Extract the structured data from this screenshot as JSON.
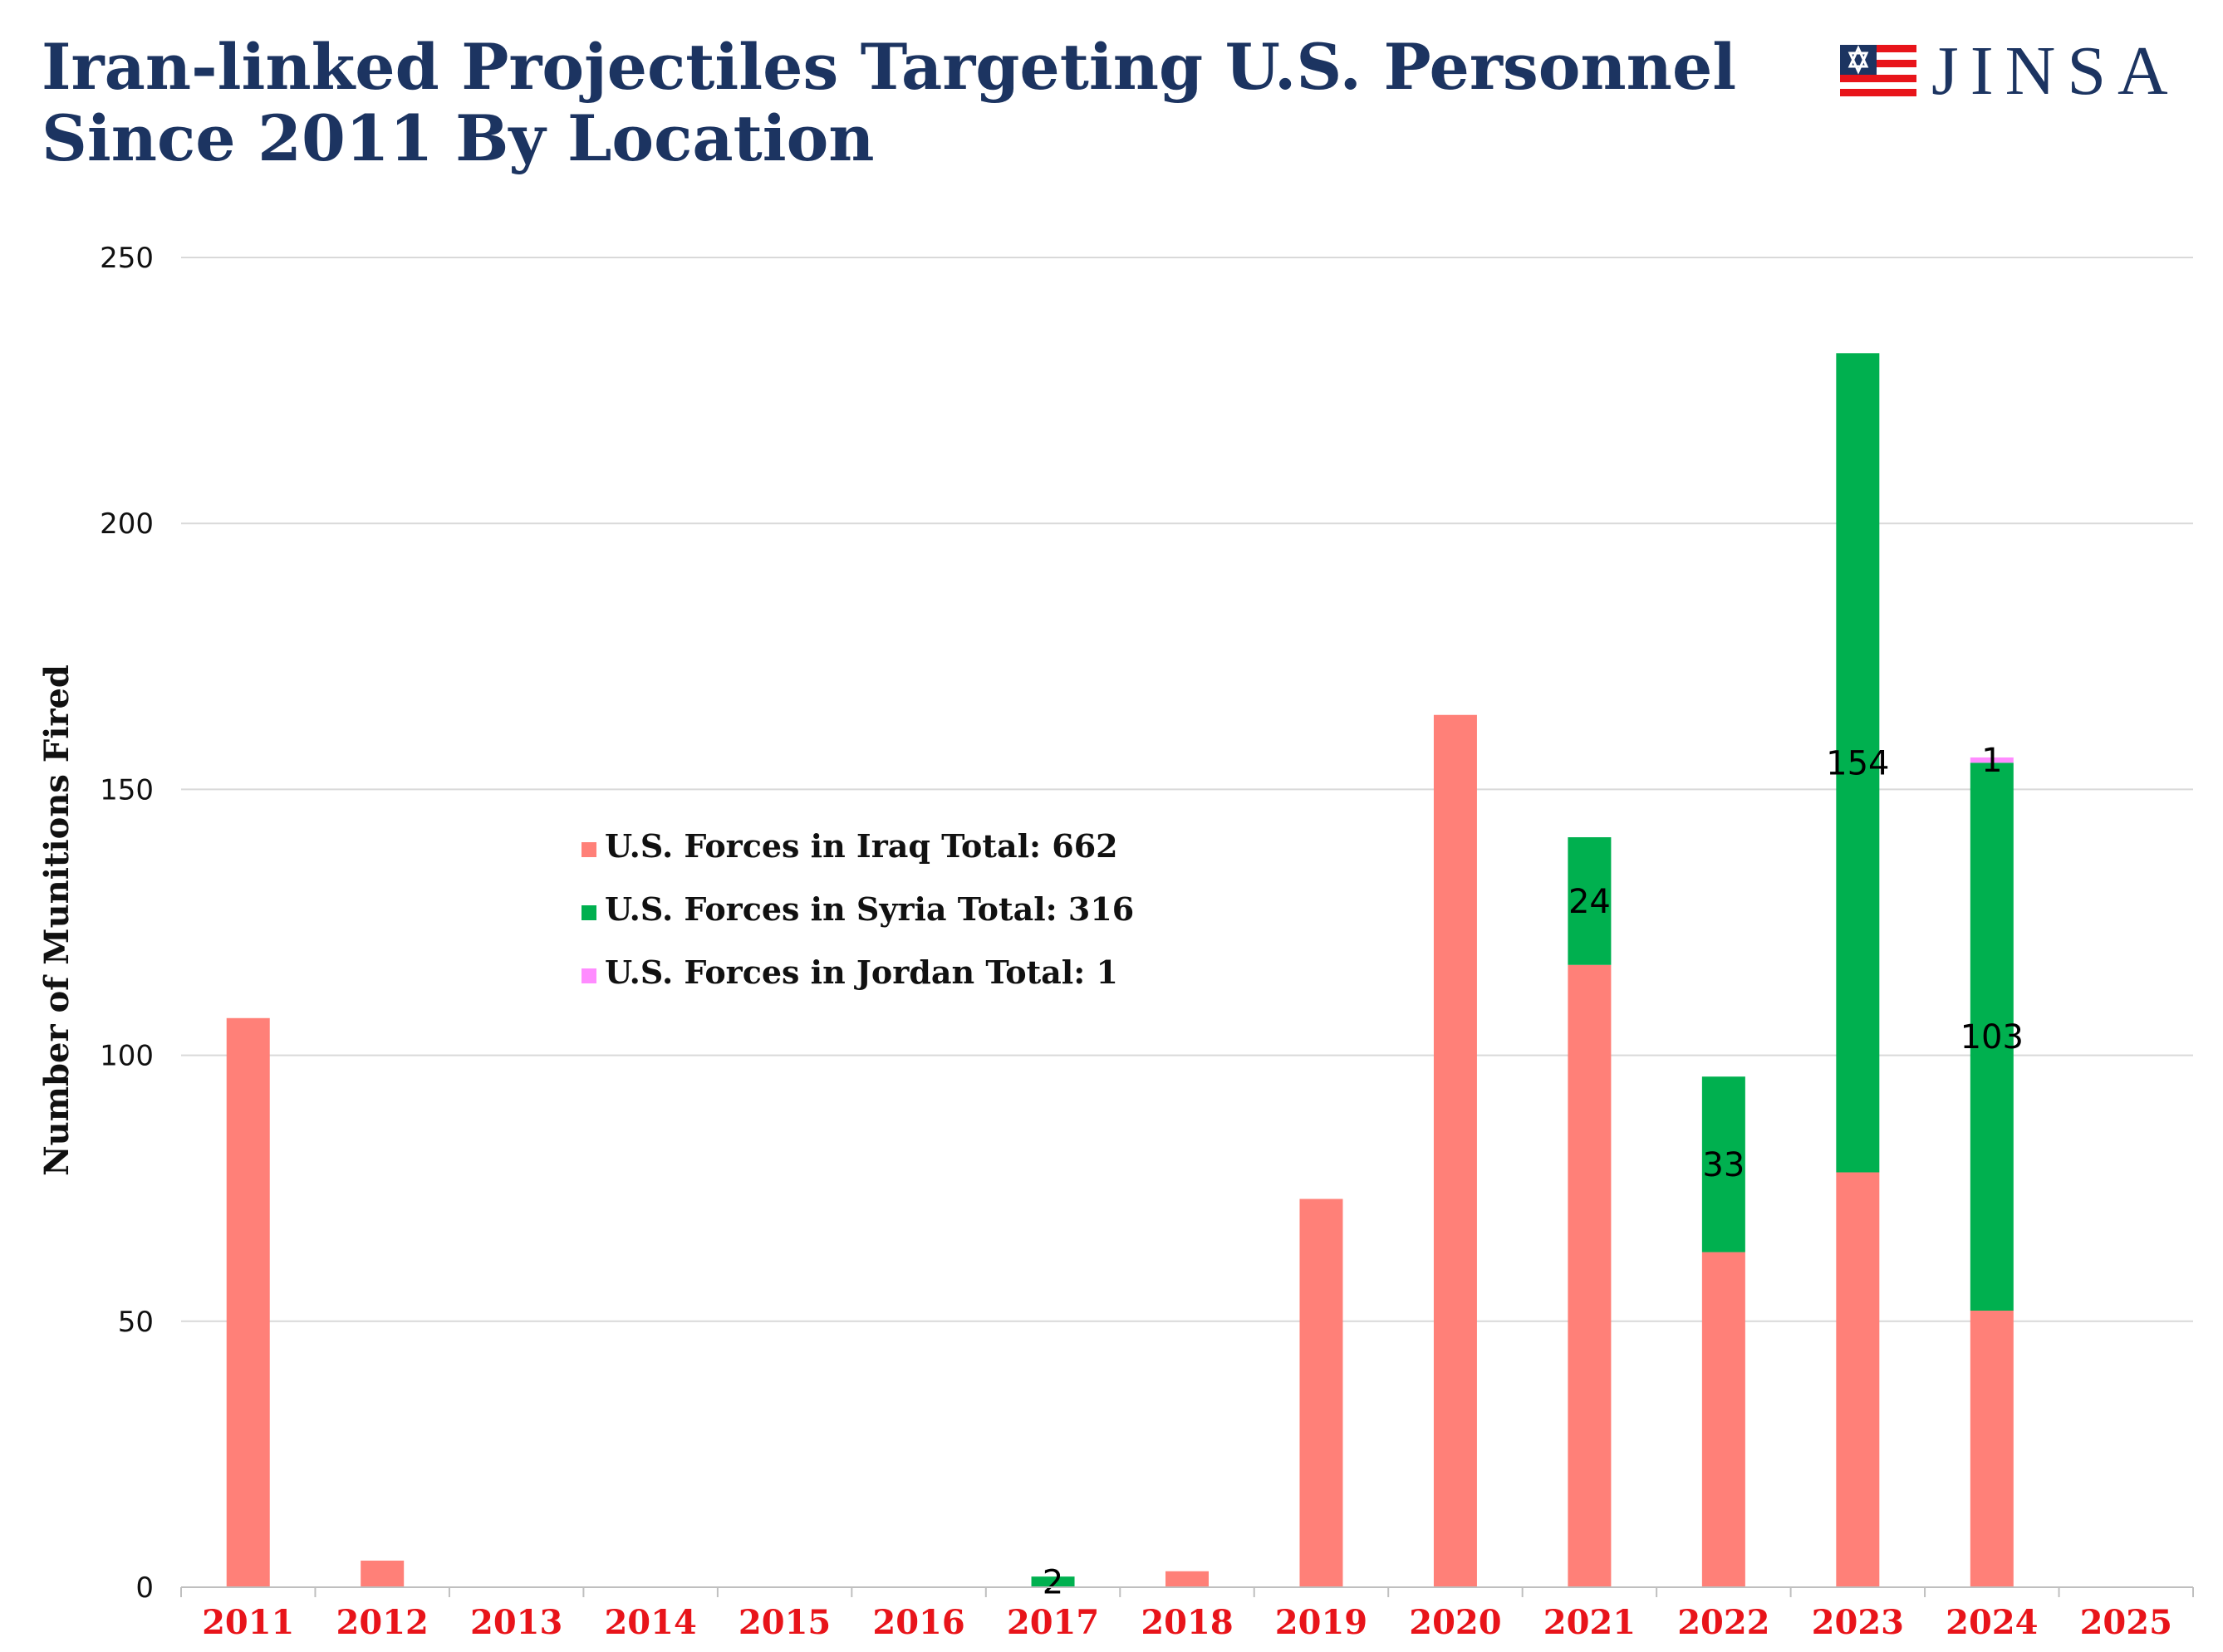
{
  "header": {
    "title_line1": "Iran-linked Projectiles Targeting U.S. Personnel",
    "title_line2": "Since 2011 By Location",
    "logo_text": "JINSA"
  },
  "chart_data": {
    "type": "bar",
    "stacked": true,
    "title": "Iran-linked Projectiles Targeting U.S. Personnel Since 2011 By Location",
    "xlabel": "",
    "ylabel": "Number of Munitions Fired",
    "ylim": [
      0,
      250
    ],
    "yticks": [
      0,
      50,
      100,
      150,
      200,
      250
    ],
    "grid": true,
    "legend_position": "center-left",
    "categories": [
      "2011",
      "2012",
      "2013",
      "2014",
      "2015",
      "2016",
      "2017",
      "2018",
      "2019",
      "2020",
      "2021",
      "2022",
      "2023",
      "2024",
      "2025"
    ],
    "series": [
      {
        "name": "U.S. Forces in Iraq Total: 662",
        "color": "#ff8078",
        "values": [
          107,
          5,
          0,
          0,
          0,
          0,
          0,
          3,
          73,
          164,
          117,
          63,
          78,
          52,
          0
        ],
        "labels": [
          null,
          null,
          null,
          null,
          null,
          null,
          null,
          null,
          null,
          null,
          null,
          null,
          null,
          null,
          null
        ]
      },
      {
        "name": "U.S. Forces in Syria Total: 316",
        "color": "#00b04f",
        "values": [
          0,
          0,
          0,
          0,
          0,
          0,
          2,
          0,
          0,
          0,
          24,
          33,
          154,
          103,
          0
        ],
        "labels": [
          null,
          null,
          null,
          null,
          null,
          null,
          "2",
          null,
          null,
          null,
          "24",
          "33",
          "154",
          "103",
          null
        ]
      },
      {
        "name": "U.S. Forces in Jordan Total: 1",
        "color": "#ff8cff",
        "values": [
          0,
          0,
          0,
          0,
          0,
          0,
          0,
          0,
          0,
          0,
          0,
          0,
          0,
          1,
          0
        ],
        "labels": [
          null,
          null,
          null,
          null,
          null,
          null,
          null,
          null,
          null,
          null,
          null,
          null,
          null,
          "1",
          null
        ]
      }
    ]
  }
}
